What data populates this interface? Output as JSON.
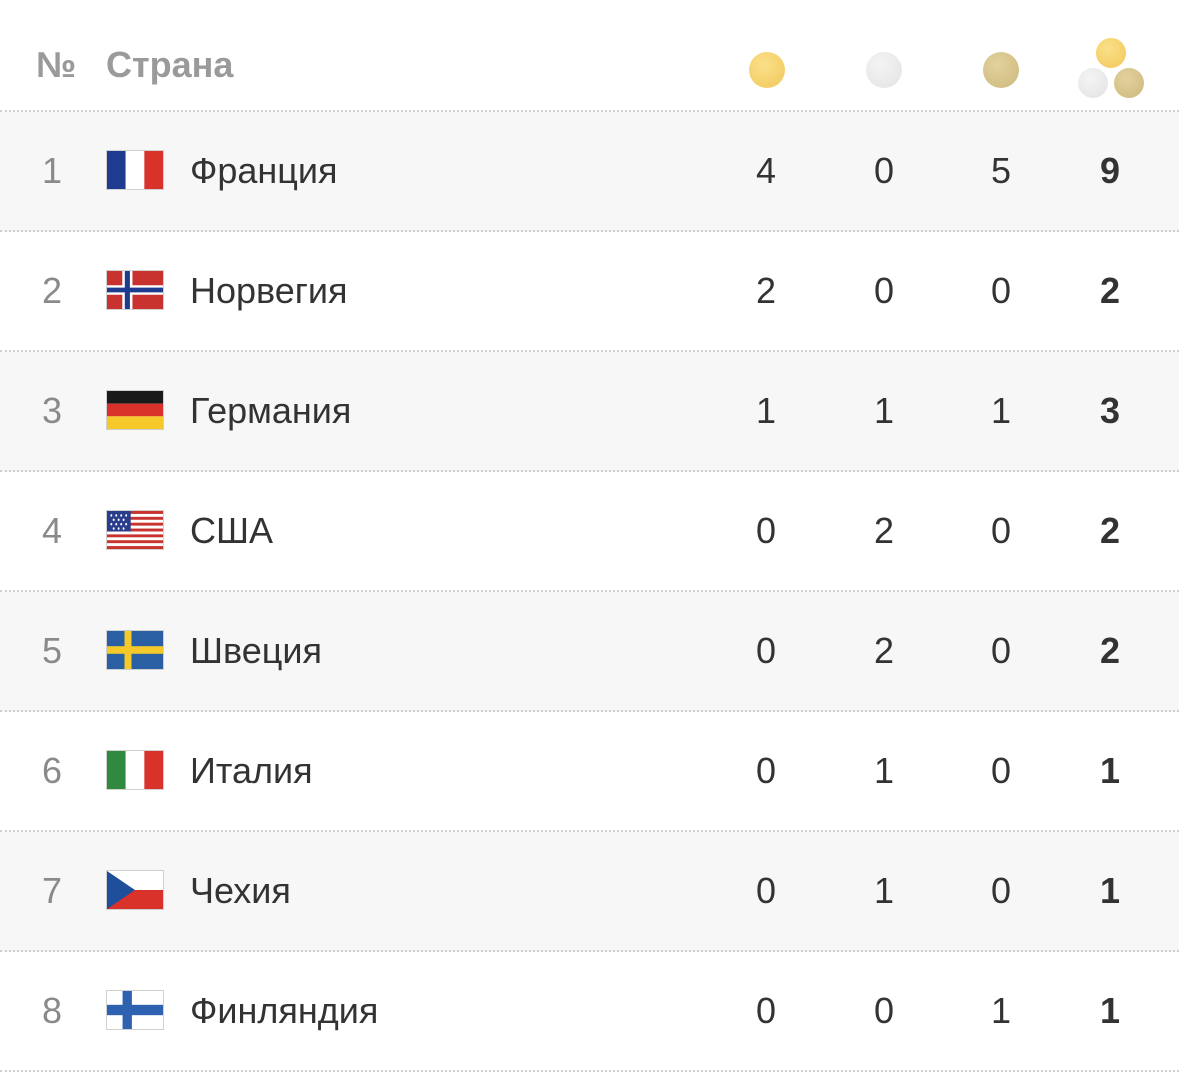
{
  "header": {
    "num_label": "№",
    "country_label": "Страна",
    "medal_icons": [
      "gold-medal-icon",
      "silver-medal-icon",
      "bronze-medal-icon",
      "total-medals-icon"
    ]
  },
  "colors": {
    "gold": "#f1c75a",
    "silver": "#e2e2e2",
    "bronze": "#cdb87b",
    "row_shade": "#f7f7f7"
  },
  "rows": [
    {
      "rank": "1",
      "country": "Франция",
      "flag": "france-flag-icon",
      "gold": "4",
      "silver": "0",
      "bronze": "5",
      "total": "9"
    },
    {
      "rank": "2",
      "country": "Норвегия",
      "flag": "norway-flag-icon",
      "gold": "2",
      "silver": "0",
      "bronze": "0",
      "total": "2"
    },
    {
      "rank": "3",
      "country": "Германия",
      "flag": "germany-flag-icon",
      "gold": "1",
      "silver": "1",
      "bronze": "1",
      "total": "3"
    },
    {
      "rank": "4",
      "country": "США",
      "flag": "usa-flag-icon",
      "gold": "0",
      "silver": "2",
      "bronze": "0",
      "total": "2"
    },
    {
      "rank": "5",
      "country": "Швеция",
      "flag": "sweden-flag-icon",
      "gold": "0",
      "silver": "2",
      "bronze": "0",
      "total": "2"
    },
    {
      "rank": "6",
      "country": "Италия",
      "flag": "italy-flag-icon",
      "gold": "0",
      "silver": "1",
      "bronze": "0",
      "total": "1"
    },
    {
      "rank": "7",
      "country": "Чехия",
      "flag": "czech-flag-icon",
      "gold": "0",
      "silver": "1",
      "bronze": "0",
      "total": "1"
    },
    {
      "rank": "8",
      "country": "Финляндия",
      "flag": "finland-flag-icon",
      "gold": "0",
      "silver": "0",
      "bronze": "1",
      "total": "1"
    }
  ]
}
